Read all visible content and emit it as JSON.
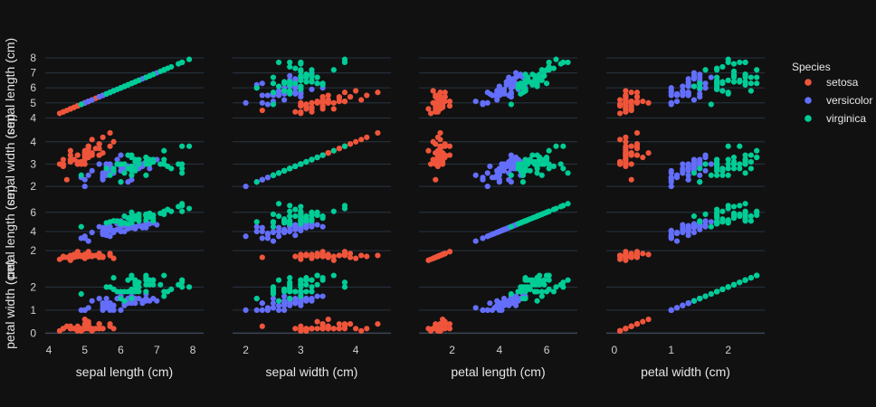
{
  "colors": {
    "background": "#111111",
    "grid": "#283442",
    "text": "#e6e6e6",
    "setosa": "#ef553b",
    "versicolor": "#636efa",
    "virginica": "#00cc96"
  },
  "chart_data": {
    "type": "scatter",
    "subtype": "scatter-matrix",
    "dimensions": [
      "sepal length (cm)",
      "sepal width (cm)",
      "petal length (cm)",
      "petal width (cm)"
    ],
    "axis_ranges": {
      "sepal length (cm)": [
        3.9,
        8.3
      ],
      "sepal width (cm)": [
        1.76,
        4.64
      ],
      "petal length (cm)": [
        0.6,
        7.3
      ],
      "petal width (cm)": [
        -0.14,
        2.64
      ]
    },
    "ticks": {
      "sepal length (cm)": [
        4,
        5,
        6,
        7,
        8
      ],
      "sepal width (cm)": [
        2,
        3,
        4
      ],
      "petal length (cm)": [
        2,
        4,
        6
      ],
      "petal width (cm)": [
        0,
        1,
        2
      ]
    },
    "grid": true,
    "legend": {
      "title": "Species",
      "position": "right",
      "entries": [
        "setosa",
        "versicolor",
        "virginica"
      ]
    },
    "series": [
      {
        "name": "setosa",
        "color_key": "setosa",
        "points": [
          [
            5.1,
            3.5,
            1.4,
            0.2
          ],
          [
            4.9,
            3.0,
            1.4,
            0.2
          ],
          [
            4.7,
            3.2,
            1.3,
            0.2
          ],
          [
            4.6,
            3.1,
            1.5,
            0.2
          ],
          [
            5.0,
            3.6,
            1.4,
            0.2
          ],
          [
            5.4,
            3.9,
            1.7,
            0.4
          ],
          [
            4.6,
            3.4,
            1.4,
            0.3
          ],
          [
            5.0,
            3.4,
            1.5,
            0.2
          ],
          [
            4.4,
            2.9,
            1.4,
            0.2
          ],
          [
            4.9,
            3.1,
            1.5,
            0.1
          ],
          [
            5.4,
            3.7,
            1.5,
            0.2
          ],
          [
            4.8,
            3.4,
            1.6,
            0.2
          ],
          [
            4.8,
            3.0,
            1.4,
            0.1
          ],
          [
            4.3,
            3.0,
            1.1,
            0.1
          ],
          [
            5.8,
            4.0,
            1.2,
            0.2
          ],
          [
            5.7,
            4.4,
            1.5,
            0.4
          ],
          [
            5.4,
            3.9,
            1.3,
            0.4
          ],
          [
            5.1,
            3.5,
            1.4,
            0.3
          ],
          [
            5.7,
            3.8,
            1.7,
            0.3
          ],
          [
            5.1,
            3.8,
            1.5,
            0.3
          ],
          [
            5.4,
            3.4,
            1.7,
            0.2
          ],
          [
            5.1,
            3.7,
            1.5,
            0.4
          ],
          [
            4.6,
            3.6,
            1.0,
            0.2
          ],
          [
            5.1,
            3.3,
            1.7,
            0.5
          ],
          [
            4.8,
            3.4,
            1.9,
            0.2
          ],
          [
            5.0,
            3.0,
            1.6,
            0.2
          ],
          [
            5.0,
            3.4,
            1.6,
            0.4
          ],
          [
            5.2,
            3.5,
            1.5,
            0.2
          ],
          [
            5.2,
            3.4,
            1.4,
            0.2
          ],
          [
            4.7,
            3.2,
            1.6,
            0.2
          ],
          [
            4.8,
            3.1,
            1.6,
            0.2
          ],
          [
            5.4,
            3.4,
            1.5,
            0.4
          ],
          [
            5.2,
            4.1,
            1.5,
            0.1
          ],
          [
            5.5,
            4.2,
            1.4,
            0.2
          ],
          [
            4.9,
            3.1,
            1.5,
            0.1
          ],
          [
            5.0,
            3.2,
            1.2,
            0.2
          ],
          [
            5.5,
            3.5,
            1.3,
            0.2
          ],
          [
            4.9,
            3.1,
            1.5,
            0.1
          ],
          [
            4.4,
            3.0,
            1.3,
            0.2
          ],
          [
            5.1,
            3.4,
            1.5,
            0.2
          ],
          [
            5.0,
            3.5,
            1.3,
            0.3
          ],
          [
            4.5,
            2.3,
            1.3,
            0.3
          ],
          [
            4.4,
            3.2,
            1.3,
            0.2
          ],
          [
            5.0,
            3.5,
            1.6,
            0.6
          ],
          [
            5.1,
            3.8,
            1.9,
            0.4
          ],
          [
            4.8,
            3.0,
            1.4,
            0.3
          ],
          [
            5.1,
            3.8,
            1.6,
            0.2
          ],
          [
            4.6,
            3.2,
            1.4,
            0.2
          ],
          [
            5.3,
            3.7,
            1.5,
            0.2
          ],
          [
            5.0,
            3.3,
            1.4,
            0.2
          ]
        ]
      },
      {
        "name": "versicolor",
        "color_key": "versicolor",
        "points": [
          [
            7.0,
            3.2,
            4.7,
            1.4
          ],
          [
            6.4,
            3.2,
            4.5,
            1.5
          ],
          [
            6.9,
            3.1,
            4.9,
            1.5
          ],
          [
            5.5,
            2.3,
            4.0,
            1.3
          ],
          [
            6.5,
            2.8,
            4.6,
            1.5
          ],
          [
            5.7,
            2.8,
            4.5,
            1.3
          ],
          [
            6.3,
            3.3,
            4.7,
            1.6
          ],
          [
            4.9,
            2.4,
            3.3,
            1.0
          ],
          [
            6.6,
            2.9,
            4.6,
            1.3
          ],
          [
            5.2,
            2.7,
            3.9,
            1.4
          ],
          [
            5.0,
            2.0,
            3.5,
            1.0
          ],
          [
            5.9,
            3.0,
            4.2,
            1.5
          ],
          [
            6.0,
            2.2,
            4.0,
            1.0
          ],
          [
            6.1,
            2.9,
            4.7,
            1.4
          ],
          [
            5.6,
            2.9,
            3.6,
            1.3
          ],
          [
            6.7,
            3.1,
            4.4,
            1.4
          ],
          [
            5.6,
            3.0,
            4.5,
            1.5
          ],
          [
            5.8,
            2.7,
            4.1,
            1.0
          ],
          [
            6.2,
            2.2,
            4.5,
            1.5
          ],
          [
            5.6,
            2.5,
            3.9,
            1.1
          ],
          [
            5.9,
            3.2,
            4.8,
            1.8
          ],
          [
            6.1,
            2.8,
            4.0,
            1.3
          ],
          [
            6.3,
            2.5,
            4.9,
            1.5
          ],
          [
            6.1,
            2.8,
            4.7,
            1.2
          ],
          [
            6.4,
            2.9,
            4.3,
            1.3
          ],
          [
            6.6,
            3.0,
            4.4,
            1.4
          ],
          [
            6.8,
            2.8,
            4.8,
            1.4
          ],
          [
            6.7,
            3.0,
            5.0,
            1.7
          ],
          [
            6.0,
            2.9,
            4.5,
            1.5
          ],
          [
            5.7,
            2.6,
            3.5,
            1.0
          ],
          [
            5.5,
            2.4,
            3.8,
            1.1
          ],
          [
            5.5,
            2.4,
            3.7,
            1.0
          ],
          [
            5.8,
            2.7,
            3.9,
            1.2
          ],
          [
            6.0,
            2.7,
            5.1,
            1.6
          ],
          [
            5.4,
            3.0,
            4.5,
            1.5
          ],
          [
            6.0,
            3.4,
            4.5,
            1.6
          ],
          [
            6.7,
            3.1,
            4.7,
            1.5
          ],
          [
            6.3,
            2.3,
            4.4,
            1.3
          ],
          [
            5.6,
            3.0,
            4.1,
            1.3
          ],
          [
            5.5,
            2.5,
            4.0,
            1.3
          ],
          [
            5.5,
            2.6,
            4.4,
            1.2
          ],
          [
            6.1,
            3.0,
            4.6,
            1.4
          ],
          [
            5.8,
            2.6,
            4.0,
            1.2
          ],
          [
            5.0,
            2.3,
            3.3,
            1.0
          ],
          [
            5.6,
            2.7,
            4.2,
            1.3
          ],
          [
            5.7,
            3.0,
            4.2,
            1.2
          ],
          [
            5.7,
            2.9,
            4.2,
            1.3
          ],
          [
            6.2,
            2.9,
            4.3,
            1.3
          ],
          [
            5.1,
            2.5,
            3.0,
            1.1
          ],
          [
            5.7,
            2.8,
            4.1,
            1.3
          ]
        ]
      },
      {
        "name": "virginica",
        "color_key": "virginica",
        "points": [
          [
            6.3,
            3.3,
            6.0,
            2.5
          ],
          [
            5.8,
            2.7,
            5.1,
            1.9
          ],
          [
            7.1,
            3.0,
            5.9,
            2.1
          ],
          [
            6.3,
            2.9,
            5.6,
            1.8
          ],
          [
            6.5,
            3.0,
            5.8,
            2.2
          ],
          [
            7.6,
            3.0,
            6.6,
            2.1
          ],
          [
            4.9,
            2.5,
            4.5,
            1.7
          ],
          [
            7.3,
            2.9,
            6.3,
            1.8
          ],
          [
            6.7,
            2.5,
            5.8,
            1.8
          ],
          [
            7.2,
            3.6,
            6.1,
            2.5
          ],
          [
            6.5,
            3.2,
            5.1,
            2.0
          ],
          [
            6.4,
            2.7,
            5.3,
            1.9
          ],
          [
            6.8,
            3.0,
            5.5,
            2.1
          ],
          [
            5.7,
            2.5,
            5.0,
            2.0
          ],
          [
            5.8,
            2.8,
            5.1,
            2.4
          ],
          [
            6.4,
            3.2,
            5.3,
            2.3
          ],
          [
            6.5,
            3.0,
            5.5,
            1.8
          ],
          [
            7.7,
            3.8,
            6.7,
            2.2
          ],
          [
            7.7,
            2.6,
            6.9,
            2.3
          ],
          [
            6.0,
            2.2,
            5.0,
            1.5
          ],
          [
            6.9,
            3.2,
            5.7,
            2.3
          ],
          [
            5.6,
            2.8,
            4.9,
            2.0
          ],
          [
            7.7,
            2.8,
            6.7,
            2.0
          ],
          [
            6.3,
            2.7,
            4.9,
            1.8
          ],
          [
            6.7,
            3.3,
            5.7,
            2.1
          ],
          [
            7.2,
            3.2,
            6.0,
            1.8
          ],
          [
            6.2,
            2.8,
            4.8,
            1.8
          ],
          [
            6.1,
            3.0,
            4.9,
            1.8
          ],
          [
            6.4,
            2.8,
            5.6,
            2.1
          ],
          [
            7.2,
            3.0,
            5.8,
            1.6
          ],
          [
            7.4,
            2.8,
            6.1,
            1.9
          ],
          [
            7.9,
            3.8,
            6.4,
            2.0
          ],
          [
            6.4,
            2.8,
            5.6,
            2.2
          ],
          [
            6.3,
            2.8,
            5.1,
            1.5
          ],
          [
            6.1,
            2.6,
            5.6,
            1.4
          ],
          [
            7.7,
            3.0,
            6.1,
            2.3
          ],
          [
            6.3,
            3.4,
            5.6,
            2.4
          ],
          [
            6.4,
            3.1,
            5.5,
            1.8
          ],
          [
            6.0,
            3.0,
            4.8,
            1.8
          ],
          [
            6.9,
            3.1,
            5.4,
            2.1
          ],
          [
            6.7,
            3.1,
            5.6,
            2.4
          ],
          [
            6.9,
            3.1,
            5.1,
            2.3
          ],
          [
            5.8,
            2.7,
            5.1,
            1.9
          ],
          [
            6.8,
            3.2,
            5.9,
            2.3
          ],
          [
            6.7,
            3.3,
            5.7,
            2.5
          ],
          [
            6.7,
            3.0,
            5.2,
            2.3
          ],
          [
            6.3,
            2.5,
            5.0,
            1.9
          ],
          [
            6.5,
            3.0,
            5.2,
            2.0
          ],
          [
            6.2,
            3.4,
            5.4,
            2.3
          ],
          [
            5.9,
            3.0,
            5.1,
            1.8
          ]
        ]
      }
    ]
  }
}
